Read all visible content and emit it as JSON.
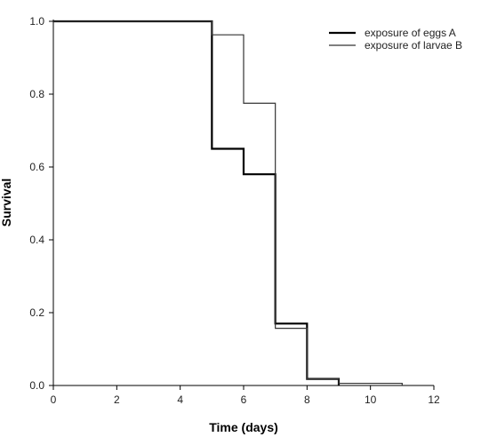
{
  "chart_data": {
    "type": "line",
    "step": true,
    "title": "",
    "xlabel": "Time (days)",
    "ylabel": "Survival",
    "xlim": [
      0,
      12
    ],
    "ylim": [
      0,
      1.0
    ],
    "xticks": [
      0,
      2,
      4,
      6,
      8,
      10,
      12
    ],
    "xtick_labels": [
      "0",
      "2",
      "4",
      "6",
      "8",
      "10",
      "12"
    ],
    "yticks": [
      0,
      0.2,
      0.4,
      0.6,
      0.8,
      1.0
    ],
    "ytick_labels": [
      "0.0",
      "0.2",
      "0.4",
      "0.6",
      "0.8",
      "1.0"
    ],
    "grid": false,
    "legend_position": "top-right",
    "series": [
      {
        "name": "exposure of eggs A",
        "color": "#000000",
        "weight": "thick",
        "x": [
          0,
          5,
          6,
          7,
          8,
          9
        ],
        "y": [
          1.0,
          0.65,
          0.58,
          0.17,
          0.018,
          0.0
        ]
      },
      {
        "name": "exposure of larvae B",
        "color": "#333333",
        "weight": "thin",
        "x": [
          0,
          5,
          6,
          7,
          8,
          9,
          11
        ],
        "y": [
          1.0,
          0.963,
          0.775,
          0.157,
          0.018,
          0.006,
          0.0
        ]
      }
    ]
  }
}
